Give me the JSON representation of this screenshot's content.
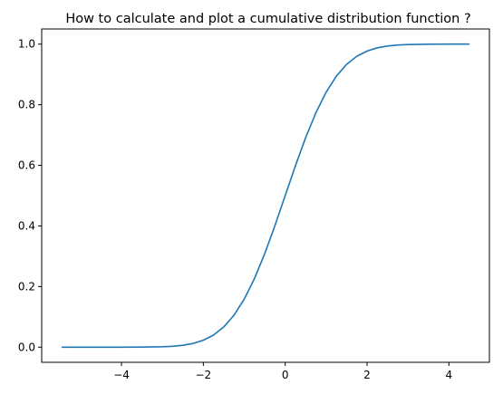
{
  "chart_data": {
    "type": "line",
    "title": "How to calculate and plot a cumulative distribution function ?",
    "xlabel": "",
    "ylabel": "",
    "xlim": [
      -5.95,
      4.99
    ],
    "ylim": [
      -0.05,
      1.05
    ],
    "x_ticks": [
      -4,
      -2,
      0,
      2,
      4
    ],
    "x_tick_labels": [
      "−4",
      "−2",
      "0",
      "2",
      "4"
    ],
    "y_ticks": [
      0.0,
      0.2,
      0.4,
      0.6,
      0.8,
      1.0
    ],
    "y_tick_labels": [
      "0.0",
      "0.2",
      "0.4",
      "0.6",
      "0.8",
      "1.0"
    ],
    "grid": false,
    "series": [
      {
        "color": "#1f77b4",
        "x": [
          -5.45,
          -5.0,
          -4.5,
          -4.0,
          -3.5,
          -3.0,
          -2.75,
          -2.5,
          -2.25,
          -2.0,
          -1.75,
          -1.5,
          -1.25,
          -1.0,
          -0.75,
          -0.5,
          -0.25,
          0.0,
          0.25,
          0.5,
          0.75,
          1.0,
          1.25,
          1.5,
          1.75,
          2.0,
          2.25,
          2.5,
          2.75,
          3.0,
          3.5,
          4.0,
          4.49
        ],
        "y": [
          0.0,
          0.0,
          0.0,
          0.0,
          0.0002,
          0.0013,
          0.003,
          0.0062,
          0.0122,
          0.0228,
          0.0401,
          0.0668,
          0.1056,
          0.1587,
          0.2266,
          0.3085,
          0.4013,
          0.5,
          0.5987,
          0.6915,
          0.7734,
          0.8413,
          0.8944,
          0.9332,
          0.9599,
          0.9772,
          0.9878,
          0.9938,
          0.997,
          0.9987,
          0.9998,
          1.0,
          1.0
        ]
      }
    ]
  }
}
